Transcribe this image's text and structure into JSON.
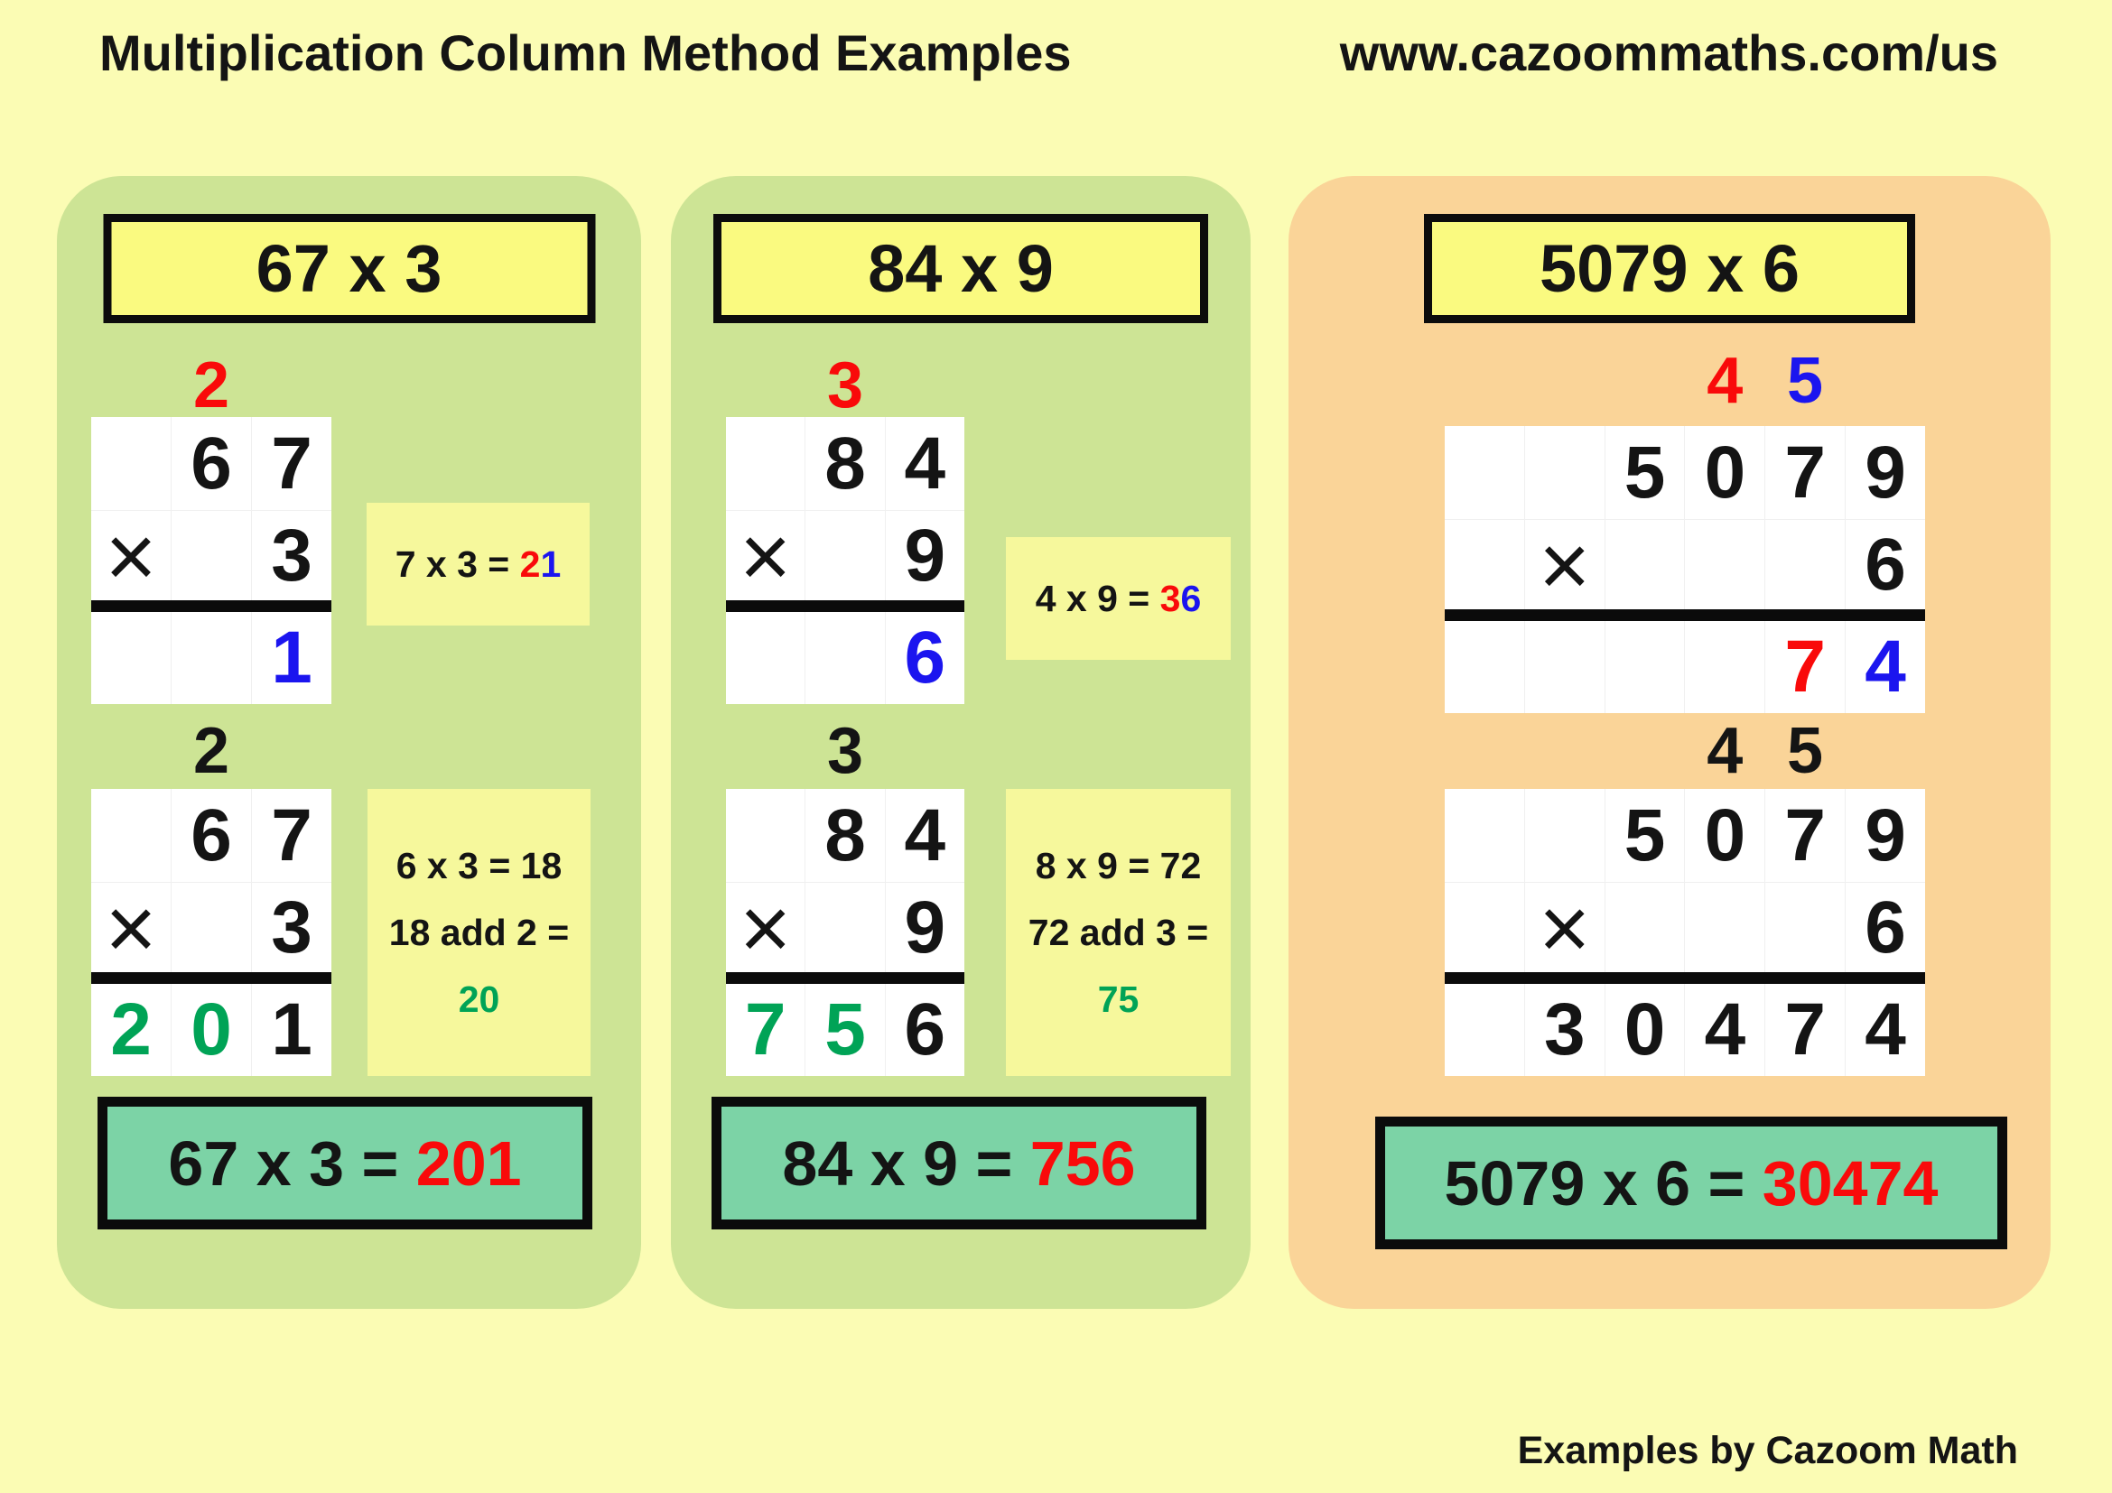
{
  "header": {
    "title": "Multiplication Column Method Examples",
    "url": "www.cazoommaths.com/us"
  },
  "footer": {
    "credit": "Examples by Cazoom Math"
  },
  "colors": {
    "background": "#FBFCB4",
    "panel_green": "#CDE495",
    "panel_orange": "#FAD498",
    "box_yellow": "#FAFA80",
    "note_yellow": "#F6F89C",
    "result_teal": "#7CD3A6",
    "digit_red": "#F90A0A",
    "digit_blue": "#1B15EF",
    "digit_green": "#00A356"
  },
  "panels": [
    {
      "id": "67x3",
      "title": "67 x 3",
      "step1": {
        "carries": [
          {
            "text": "2",
            "color": "red"
          }
        ],
        "rows": [
          [
            "",
            "6",
            "7"
          ],
          [
            "×",
            "",
            "3"
          ],
          [
            "",
            "",
            {
              "text": "1",
              "color": "blue"
            }
          ]
        ],
        "note": [
          [
            {
              "text": "7 x 3 = ",
              "color": "black"
            },
            {
              "text": "2",
              "color": "red"
            },
            {
              "text": "1",
              "color": "blue"
            }
          ]
        ]
      },
      "step2": {
        "carries": [
          {
            "text": "2",
            "color": "black"
          }
        ],
        "rows": [
          [
            "",
            "6",
            "7"
          ],
          [
            "×",
            "",
            "3"
          ],
          [
            {
              "text": "2",
              "color": "green"
            },
            {
              "text": "0",
              "color": "green"
            },
            "1"
          ]
        ],
        "note": [
          [
            {
              "text": "6 x 3 = 18",
              "color": "black"
            }
          ],
          [
            {
              "text": "18 add 2 =",
              "color": "black"
            }
          ],
          [
            {
              "text": "20",
              "color": "green"
            }
          ]
        ]
      },
      "result": [
        {
          "text": "67 x 3 = ",
          "color": "black"
        },
        {
          "text": "201",
          "color": "red"
        }
      ]
    },
    {
      "id": "84x9",
      "title": "84 x 9",
      "step1": {
        "carries": [
          {
            "text": "3",
            "color": "red"
          }
        ],
        "rows": [
          [
            "",
            "8",
            "4"
          ],
          [
            "×",
            "",
            "9"
          ],
          [
            "",
            "",
            {
              "text": "6",
              "color": "blue"
            }
          ]
        ],
        "note": [
          [
            {
              "text": "4 x 9 = ",
              "color": "black"
            },
            {
              "text": "3",
              "color": "red"
            },
            {
              "text": "6",
              "color": "blue"
            }
          ]
        ]
      },
      "step2": {
        "carries": [
          {
            "text": "3",
            "color": "black"
          }
        ],
        "rows": [
          [
            "",
            "8",
            "4"
          ],
          [
            "×",
            "",
            "9"
          ],
          [
            {
              "text": "7",
              "color": "green"
            },
            {
              "text": "5",
              "color": "green"
            },
            "6"
          ]
        ],
        "note": [
          [
            {
              "text": "8 x 9 = 72",
              "color": "black"
            }
          ],
          [
            {
              "text": "72 add 3 =",
              "color": "black"
            }
          ],
          [
            {
              "text": "75",
              "color": "green"
            }
          ]
        ]
      },
      "result": [
        {
          "text": "84 x 9 = ",
          "color": "black"
        },
        {
          "text": "756",
          "color": "red"
        }
      ]
    },
    {
      "id": "5079x6",
      "title": "5079 x 6",
      "step1": {
        "carries": [
          {
            "text": "4",
            "color": "red"
          },
          {
            "text": "5",
            "color": "blue"
          }
        ],
        "rows": [
          [
            "",
            "",
            "5",
            "0",
            "7",
            "9"
          ],
          [
            "",
            "×",
            "",
            "",
            "",
            "6"
          ],
          [
            "",
            "",
            "",
            "",
            {
              "text": "7",
              "color": "red"
            },
            {
              "text": "4",
              "color": "blue"
            }
          ]
        ],
        "note": null
      },
      "step2": {
        "carries": [
          {
            "text": "4",
            "color": "black"
          },
          {
            "text": "5",
            "color": "black"
          }
        ],
        "rows": [
          [
            "",
            "",
            "5",
            "0",
            "7",
            "9"
          ],
          [
            "",
            "×",
            "",
            "",
            "",
            "6"
          ],
          [
            "",
            "3",
            "0",
            "4",
            "7",
            "4"
          ]
        ],
        "note": null
      },
      "result": [
        {
          "text": "5079 x 6 = ",
          "color": "black"
        },
        {
          "text": "30474",
          "color": "red"
        }
      ]
    }
  ]
}
